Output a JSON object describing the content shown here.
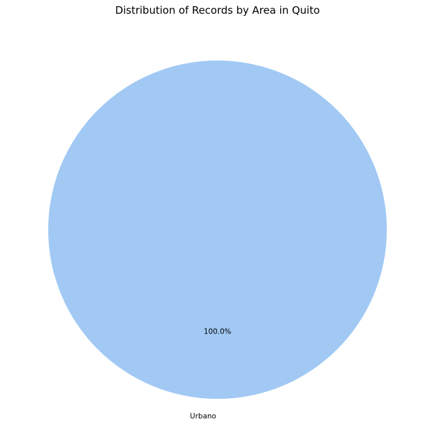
{
  "chart_data": {
    "type": "pie",
    "title": "Distribution of Records by Area in Quito",
    "categories": [
      "Urbano"
    ],
    "values": [
      100.0
    ],
    "percent_labels": [
      "100.0%"
    ],
    "colors": [
      "#a1c9f4"
    ],
    "legend": "none"
  }
}
